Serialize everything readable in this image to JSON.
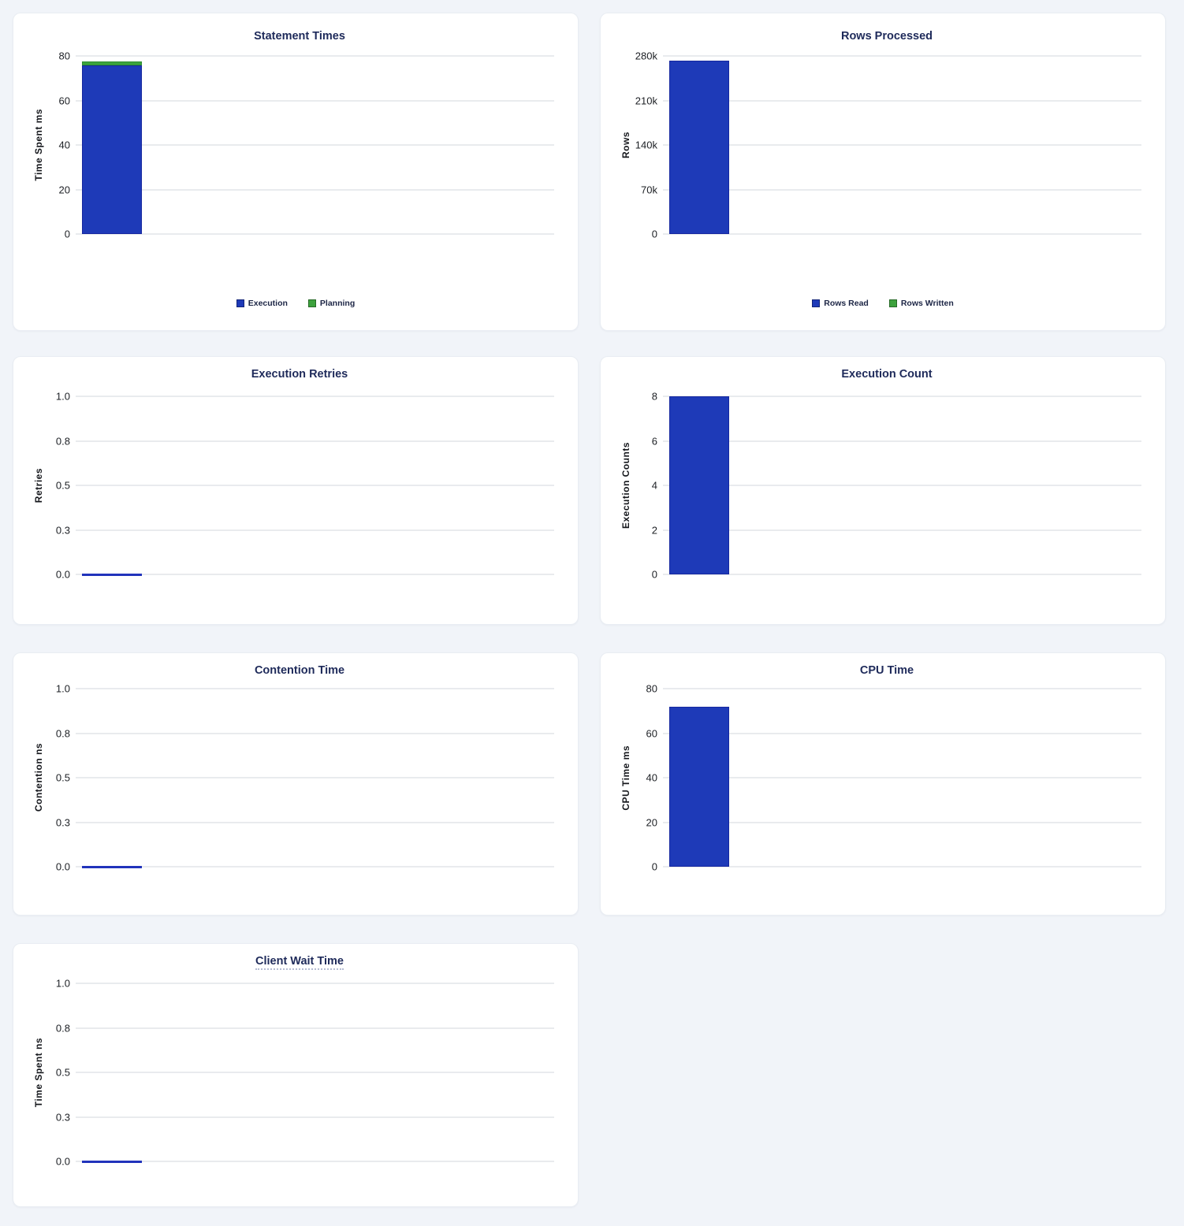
{
  "page": {
    "background": "#f1f4f9",
    "card_background": "#ffffff"
  },
  "colors": {
    "title": "#1e2a5a",
    "tick_label": "#1d2025",
    "axis_label": "#15171c",
    "gridline": "#e9ebee",
    "bar_blue": "#1e3ab8",
    "bar_blue_border": "#16279f",
    "bar_green": "#3da23d",
    "bar_green_border": "#2e8f31",
    "zero_line_blue": "#2133bb",
    "legend_text": "#1c2545"
  },
  "chart_data": [
    {
      "type": "bar",
      "title": "Statement Times",
      "ylabel": "Time Spent ms",
      "ylim": [
        0,
        80
      ],
      "yticks": [
        "80",
        "60",
        "40",
        "20",
        "0"
      ],
      "grid": true,
      "legend_position": "bottom",
      "series": [
        {
          "name": "Execution",
          "color_key": "blue",
          "values": [
            75.8
          ]
        },
        {
          "name": "Planning",
          "color_key": "green",
          "values": [
            1.9
          ]
        }
      ],
      "legend": [
        {
          "label": "Execution",
          "color_key": "blue"
        },
        {
          "label": "Planning",
          "color_key": "green"
        }
      ]
    },
    {
      "type": "bar",
      "title": "Rows Processed",
      "ylabel": "Rows",
      "ylim": [
        0,
        280000
      ],
      "yticks": [
        "280k",
        "210k",
        "140k",
        "70k",
        "0"
      ],
      "grid": true,
      "legend_position": "bottom",
      "series": [
        {
          "name": "Rows Read",
          "color_key": "blue",
          "values": [
            272000
          ]
        },
        {
          "name": "Rows Written",
          "color_key": "green",
          "values": [
            0
          ]
        }
      ],
      "legend": [
        {
          "label": "Rows Read",
          "color_key": "blue"
        },
        {
          "label": "Rows Written",
          "color_key": "green"
        }
      ]
    },
    {
      "type": "bar",
      "title": "Execution Retries",
      "ylabel": "Retries",
      "ylim": [
        0,
        1
      ],
      "yticks": [
        "1.0",
        "0.8",
        "0.5",
        "0.3",
        "0.0"
      ],
      "grid": true,
      "series": [
        {
          "name": "Retries",
          "color_key": "blue",
          "values": [
            0
          ]
        }
      ]
    },
    {
      "type": "bar",
      "title": "Execution Count",
      "ylabel": "Execution Counts",
      "ylim": [
        0,
        8
      ],
      "yticks": [
        "8",
        "6",
        "4",
        "2",
        "0"
      ],
      "grid": true,
      "series": [
        {
          "name": "Execution Count",
          "color_key": "blue",
          "values": [
            8
          ]
        }
      ]
    },
    {
      "type": "bar",
      "title": "Contention Time",
      "ylabel": "Contention ns",
      "ylim": [
        0,
        1
      ],
      "yticks": [
        "1.0",
        "0.8",
        "0.5",
        "0.3",
        "0.0"
      ],
      "grid": true,
      "series": [
        {
          "name": "Contention",
          "color_key": "blue",
          "values": [
            0
          ]
        }
      ]
    },
    {
      "type": "bar",
      "title": "CPU Time",
      "ylabel": "CPU Time ms",
      "ylim": [
        0,
        80
      ],
      "yticks": [
        "80",
        "60",
        "40",
        "20",
        "0"
      ],
      "grid": true,
      "series": [
        {
          "name": "CPU Time",
          "color_key": "blue",
          "values": [
            72
          ]
        }
      ]
    },
    {
      "type": "bar",
      "title": "Client Wait Time",
      "title_underlined": true,
      "ylabel": "Time Spent ns",
      "ylim": [
        0,
        1
      ],
      "yticks": [
        "1.0",
        "0.8",
        "0.5",
        "0.3",
        "0.0"
      ],
      "grid": true,
      "series": [
        {
          "name": "Client Wait",
          "color_key": "blue",
          "values": [
            0
          ]
        }
      ]
    }
  ]
}
